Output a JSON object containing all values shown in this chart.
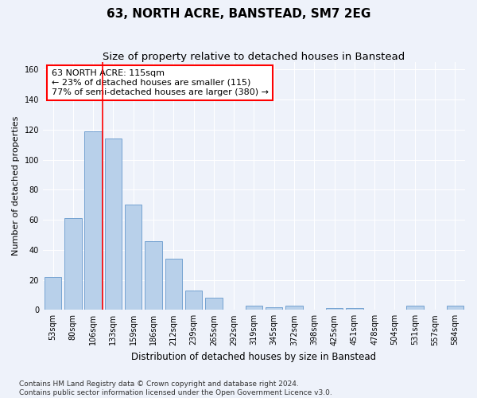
{
  "title": "63, NORTH ACRE, BANSTEAD, SM7 2EG",
  "subtitle": "Size of property relative to detached houses in Banstead",
  "xlabel": "Distribution of detached houses by size in Banstead",
  "ylabel": "Number of detached properties",
  "categories": [
    "53sqm",
    "80sqm",
    "106sqm",
    "133sqm",
    "159sqm",
    "186sqm",
    "212sqm",
    "239sqm",
    "265sqm",
    "292sqm",
    "319sqm",
    "345sqm",
    "372sqm",
    "398sqm",
    "425sqm",
    "451sqm",
    "478sqm",
    "504sqm",
    "531sqm",
    "557sqm",
    "584sqm"
  ],
  "values": [
    22,
    61,
    119,
    114,
    70,
    46,
    34,
    13,
    8,
    0,
    3,
    2,
    3,
    0,
    1,
    1,
    0,
    0,
    3,
    0,
    3
  ],
  "bar_color": "#b8d0ea",
  "bar_edge_color": "#6699cc",
  "property_line_x": 2.45,
  "annotation_text": "63 NORTH ACRE: 115sqm\n← 23% of detached houses are smaller (115)\n77% of semi-detached houses are larger (380) →",
  "annotation_box_color": "white",
  "annotation_box_edge_color": "red",
  "vline_color": "red",
  "ylim": [
    0,
    165
  ],
  "yticks": [
    0,
    20,
    40,
    60,
    80,
    100,
    120,
    140,
    160
  ],
  "background_color": "#eef2fa",
  "grid_color": "white",
  "footnote": "Contains HM Land Registry data © Crown copyright and database right 2024.\nContains public sector information licensed under the Open Government Licence v3.0.",
  "title_fontsize": 11,
  "subtitle_fontsize": 9.5,
  "xlabel_fontsize": 8.5,
  "ylabel_fontsize": 8,
  "tick_fontsize": 7,
  "annotation_fontsize": 8,
  "footnote_fontsize": 6.5
}
